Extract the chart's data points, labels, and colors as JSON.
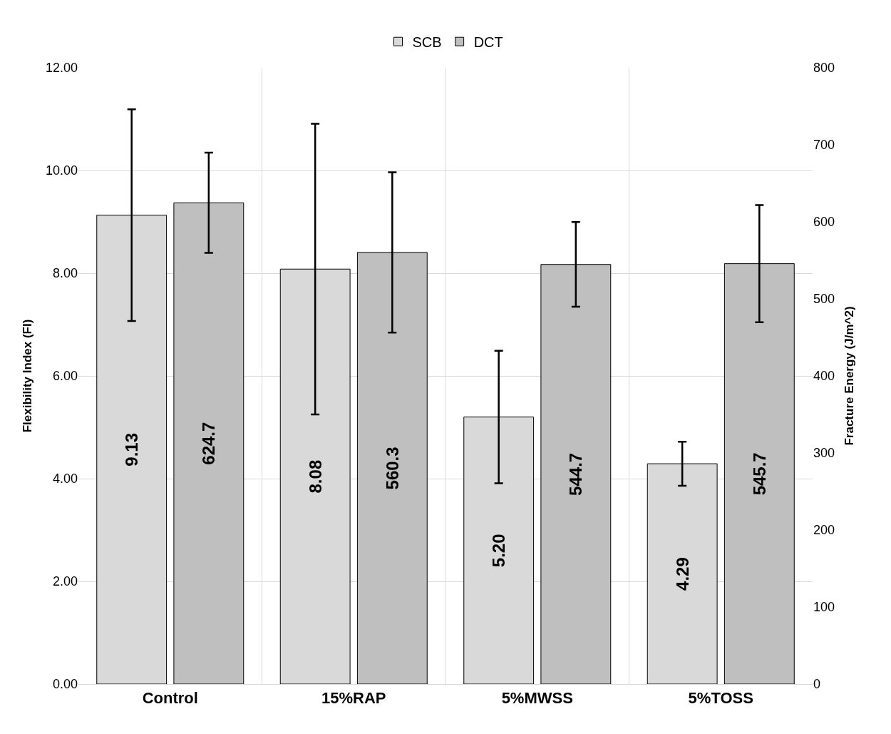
{
  "chart_data": {
    "type": "bar",
    "ylabel": "Flexibility Index (FI)",
    "y2label": "Fracture Energy (J/m^2)",
    "categories": [
      "Control",
      "15%RAP",
      "5%MWSS",
      "5%TOSS"
    ],
    "series": [
      {
        "name": "SCB",
        "color": "#d9d9d9",
        "values": [
          9.13,
          8.08,
          5.2,
          4.29
        ],
        "errors": [
          2.06,
          2.83,
          1.29,
          0.43
        ],
        "value_labels": [
          "9.13",
          "8.08",
          "5.20",
          "4.29"
        ]
      },
      {
        "name": "DCT",
        "color": "#bfbfbf",
        "axis": "y2",
        "values": [
          624.7,
          560.3,
          544.7,
          545.7
        ],
        "errors": [
          65,
          104,
          55,
          76
        ],
        "value_labels": [
          "624.7",
          "560.3",
          "544.7",
          "545.7"
        ]
      }
    ],
    "ylim": [
      0,
      12
    ],
    "yticks": [
      {
        "value": 0,
        "label": "0.00"
      },
      {
        "value": 2,
        "label": "2.00"
      },
      {
        "value": 4,
        "label": "4.00"
      },
      {
        "value": 6,
        "label": "6.00"
      },
      {
        "value": 8,
        "label": "8.00"
      },
      {
        "value": 10,
        "label": "10.00"
      },
      {
        "value": 12,
        "label": "12.00"
      }
    ],
    "y2lim": [
      0,
      800
    ],
    "y2ticks": [
      0,
      100,
      200,
      300,
      400,
      500,
      600,
      700,
      800
    ],
    "grid": true,
    "legend": "top"
  }
}
